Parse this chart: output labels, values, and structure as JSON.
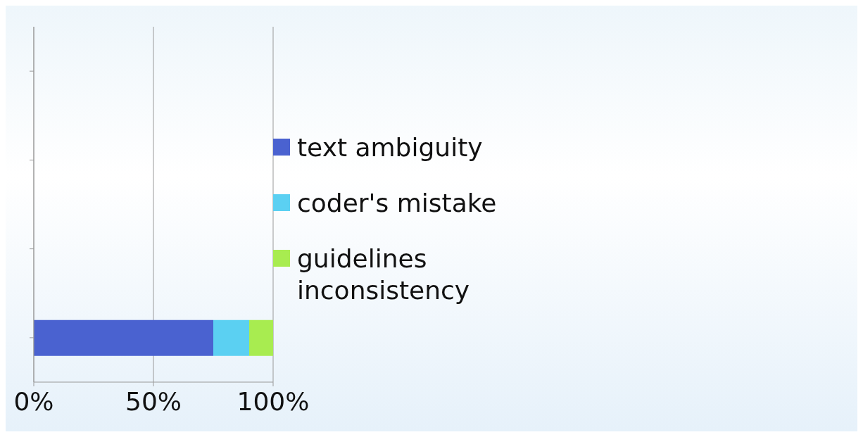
{
  "chart_data": {
    "type": "bar",
    "orientation": "horizontal",
    "stacked": true,
    "categories": [
      null,
      null,
      null,
      null
    ],
    "series": [
      {
        "name": "text ambiguity",
        "color": "#4a62d0",
        "values": [
          null,
          null,
          null,
          75
        ]
      },
      {
        "name": "coder's mistake",
        "color": "#5bd0f2",
        "values": [
          null,
          null,
          null,
          15
        ]
      },
      {
        "name": "guidelines inconsistency",
        "color": "#a8ec50",
        "values": [
          null,
          null,
          null,
          10
        ]
      }
    ],
    "xlim": [
      0,
      100
    ],
    "xticks": [
      {
        "value": 0,
        "label": "0%"
      },
      {
        "value": 50,
        "label": "50%"
      },
      {
        "value": 100,
        "label": "100%"
      }
    ],
    "grid": "x",
    "legend": "right"
  }
}
